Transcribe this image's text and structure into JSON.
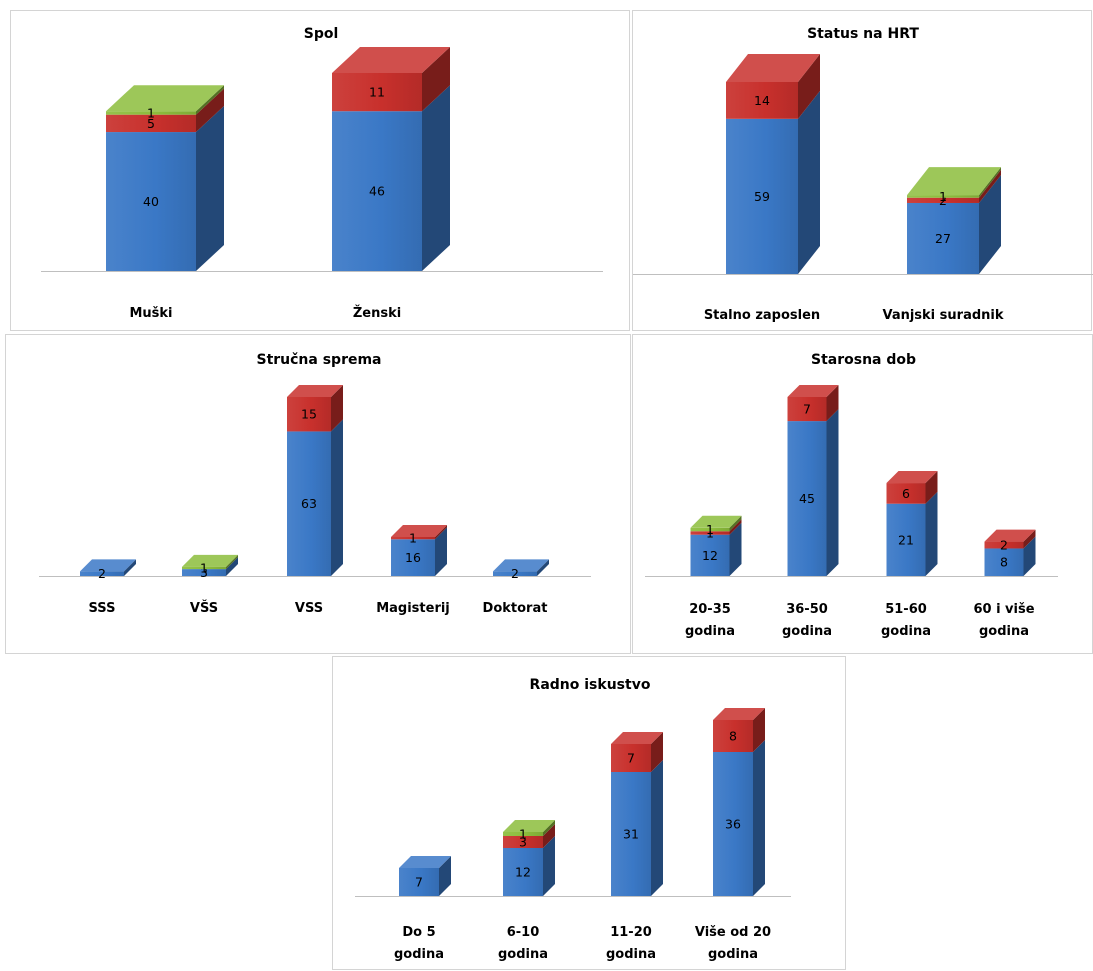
{
  "colors": {
    "series_1": "#3a78c6",
    "series_2": "#c8302c",
    "series_3": "#8cbd3c"
  },
  "chart_data": [
    {
      "id": "spol",
      "type": "bar",
      "stacked": true,
      "title": "Spol",
      "categories": [
        [
          "Muški"
        ],
        [
          "Ženski"
        ]
      ],
      "series": [
        {
          "values": [
            40,
            46
          ]
        },
        {
          "values": [
            5,
            11
          ]
        },
        {
          "values": [
            1,
            0
          ]
        }
      ],
      "grid": false,
      "legend": "none"
    },
    {
      "id": "status",
      "type": "bar",
      "stacked": true,
      "title": "Status na HRT",
      "categories": [
        [
          "Stalno zaposlen"
        ],
        [
          "Vanjski suradnik"
        ]
      ],
      "series": [
        {
          "values": [
            59,
            27
          ]
        },
        {
          "values": [
            14,
            2
          ]
        },
        {
          "values": [
            0,
            1
          ]
        }
      ],
      "grid": false,
      "legend": "none"
    },
    {
      "id": "sprema",
      "type": "bar",
      "stacked": true,
      "title": "Stručna sprema",
      "categories": [
        [
          "SSS"
        ],
        [
          "VŠS"
        ],
        [
          "VSS"
        ],
        [
          "Magisterij"
        ],
        [
          "Doktorat"
        ]
      ],
      "series": [
        {
          "values": [
            2,
            3,
            63,
            16,
            2
          ]
        },
        {
          "values": [
            0,
            0,
            15,
            1,
            0
          ]
        },
        {
          "values": [
            0,
            1,
            0,
            0,
            0
          ]
        }
      ],
      "grid": false,
      "legend": "none"
    },
    {
      "id": "dob",
      "type": "bar",
      "stacked": true,
      "title": "Starosna dob",
      "categories": [
        [
          "20-35",
          "godina"
        ],
        [
          "36-50",
          "godina"
        ],
        [
          "51-60",
          "godina"
        ],
        [
          "60 i više",
          "godina"
        ]
      ],
      "series": [
        {
          "values": [
            12,
            45,
            21,
            8
          ]
        },
        {
          "values": [
            1,
            7,
            6,
            2
          ]
        },
        {
          "values": [
            1,
            0,
            0,
            0
          ]
        }
      ],
      "grid": false,
      "legend": "none"
    },
    {
      "id": "iskustvo",
      "type": "bar",
      "stacked": true,
      "title": "Radno iskustvo",
      "categories": [
        [
          "Do 5",
          "godina"
        ],
        [
          "6-10",
          "godina"
        ],
        [
          "11-20",
          "godina"
        ],
        [
          "Više od 20",
          "godina"
        ]
      ],
      "series": [
        {
          "values": [
            7,
            12,
            31,
            36
          ]
        },
        {
          "values": [
            0,
            3,
            7,
            8
          ]
        },
        {
          "values": [
            0,
            1,
            0,
            0
          ]
        }
      ],
      "grid": false,
      "legend": "none"
    }
  ]
}
